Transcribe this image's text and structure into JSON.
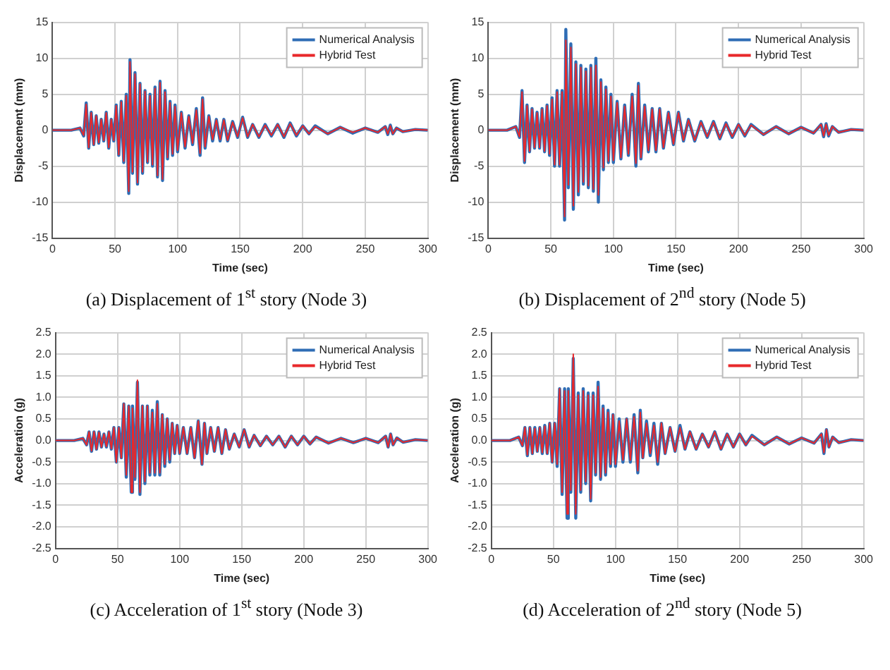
{
  "chart_data": [
    {
      "type": "line",
      "title": "(a) Displacement of 1$^{st}$ story (Node 3)",
      "xlabel": "Time (sec)",
      "ylabel": "Displacement (mm)",
      "xlim": [
        0,
        300
      ],
      "xticks": [
        0,
        50,
        100,
        150,
        200,
        250,
        300
      ],
      "ylim": [
        -15,
        15
      ],
      "yticks": [
        -15,
        -10,
        -5,
        0,
        5,
        10,
        15
      ],
      "grid": true,
      "legend": "top right",
      "marker": "none",
      "x": [
        0,
        15,
        22,
        25,
        27,
        29,
        31,
        33,
        35,
        37,
        39,
        41,
        43,
        45,
        47,
        49,
        51,
        53,
        55,
        57,
        59,
        61,
        62,
        64,
        66,
        68,
        70,
        72,
        74,
        76,
        78,
        80,
        82,
        84,
        86,
        88,
        90,
        92,
        94,
        96,
        98,
        100,
        103,
        106,
        109,
        112,
        115,
        118,
        120,
        122,
        125,
        128,
        131,
        134,
        137,
        140,
        144,
        148,
        152,
        156,
        160,
        165,
        170,
        175,
        180,
        185,
        190,
        195,
        200,
        205,
        210,
        220,
        230,
        240,
        250,
        260,
        266,
        268,
        270,
        272,
        275,
        280,
        290,
        300
      ],
      "series": [
        {
          "name": "Numerical Analysis",
          "color": "#2f6db5",
          "values": [
            0,
            0,
            0.3,
            -0.8,
            3.8,
            -2.5,
            2.5,
            -2,
            2,
            -1.8,
            1.5,
            -1.5,
            2.5,
            -2.5,
            1.5,
            -1.5,
            3.5,
            -3.5,
            4,
            -4.5,
            5,
            -8.8,
            9.8,
            -6,
            8,
            -7.5,
            6.5,
            -6,
            5.5,
            -4.5,
            5,
            -5,
            6,
            -6.5,
            6.8,
            -7,
            5.5,
            -4,
            4,
            -3.5,
            3.5,
            -3,
            2.5,
            -2.5,
            2,
            -2,
            3,
            -3.5,
            4.5,
            -2.5,
            2,
            -1.5,
            1.5,
            -1.5,
            1.5,
            -1.5,
            1.2,
            -1,
            1.8,
            -1,
            0.8,
            -1,
            0.8,
            -0.8,
            0.8,
            -1,
            1,
            -0.8,
            0.6,
            -0.5,
            0.6,
            -0.5,
            0.4,
            -0.4,
            0.3,
            -0.3,
            0.5,
            -0.6,
            0.7,
            -0.5,
            0.3,
            -0.2,
            0.1,
            0
          ]
        },
        {
          "name": "Hybrid Test",
          "color": "#e8282b",
          "values": [
            0,
            0,
            0.3,
            -0.7,
            3.6,
            -2.4,
            2.4,
            -2,
            2,
            -1.7,
            1.5,
            -1.4,
            2.4,
            -2.4,
            1.5,
            -1.4,
            3.4,
            -3.4,
            3.9,
            -4.3,
            4.8,
            -8.5,
            9.5,
            -5.8,
            7.8,
            -7.3,
            6.4,
            -5.8,
            5.4,
            -4.4,
            4.8,
            -4.8,
            5.8,
            -6.3,
            6.6,
            -6.8,
            5.3,
            -3.8,
            3.8,
            -3.3,
            3.3,
            -2.8,
            2.4,
            -2.3,
            1.9,
            -1.8,
            2.8,
            -3.2,
            4.3,
            -2.3,
            1.9,
            -1.3,
            1.4,
            -1.3,
            1.4,
            -1.4,
            1.1,
            -0.9,
            1.7,
            -0.9,
            0.8,
            -0.9,
            0.7,
            -0.7,
            0.8,
            -0.9,
            0.9,
            -0.7,
            0.6,
            -0.5,
            0.5,
            -0.5,
            0.4,
            -0.3,
            0.3,
            -0.3,
            0.5,
            -0.5,
            0.6,
            -0.5,
            0.3,
            -0.2,
            0.1,
            0
          ]
        }
      ]
    },
    {
      "type": "line",
      "title": "(b) Displacement of 2$^{nd}$ story (Node 5)",
      "xlabel": "Time (sec)",
      "ylabel": "Displacement (mm)",
      "xlim": [
        0,
        300
      ],
      "xticks": [
        0,
        50,
        100,
        150,
        200,
        250,
        300
      ],
      "ylim": [
        -15,
        15
      ],
      "yticks": [
        -15,
        -10,
        -5,
        0,
        5,
        10,
        15
      ],
      "grid": true,
      "legend": "top right",
      "marker": "none",
      "x": [
        0,
        15,
        22,
        25,
        27,
        29,
        31,
        33,
        35,
        37,
        39,
        41,
        43,
        45,
        47,
        49,
        51,
        53,
        55,
        57,
        59,
        61,
        62,
        64,
        66,
        68,
        70,
        72,
        74,
        76,
        78,
        80,
        82,
        84,
        86,
        88,
        90,
        92,
        94,
        96,
        98,
        100,
        103,
        106,
        109,
        112,
        115,
        118,
        120,
        122,
        125,
        128,
        131,
        134,
        137,
        140,
        144,
        148,
        152,
        156,
        160,
        165,
        170,
        175,
        180,
        185,
        190,
        195,
        200,
        205,
        210,
        220,
        230,
        240,
        250,
        260,
        266,
        268,
        270,
        272,
        275,
        280,
        290,
        300
      ],
      "series": [
        {
          "name": "Numerical Analysis",
          "color": "#2f6db5",
          "values": [
            0,
            0,
            0.5,
            -1,
            5.5,
            -4.5,
            3.5,
            -3,
            3,
            -2.5,
            2.5,
            -2.5,
            3,
            -3,
            3.5,
            -3.5,
            4.5,
            -5,
            5.5,
            -5,
            5.5,
            -12.5,
            14,
            -8,
            12,
            -11,
            9.5,
            -9,
            9,
            -7.5,
            8.5,
            -8,
            9,
            -8.5,
            10,
            -10,
            7,
            -5.5,
            6,
            -4.5,
            5,
            -4.5,
            4,
            -4,
            3.5,
            -3.5,
            5,
            -5,
            6.5,
            -4,
            3.5,
            -3,
            3,
            -3,
            3,
            -2.5,
            2.5,
            -2,
            2.5,
            -1.5,
            1.5,
            -1.5,
            1.2,
            -1,
            1.2,
            -1.2,
            1,
            -1,
            0.8,
            -0.8,
            0.8,
            -0.6,
            0.5,
            -0.5,
            0.4,
            -0.4,
            0.8,
            -0.9,
            0.9,
            -0.8,
            0.5,
            -0.3,
            0.1,
            0
          ]
        },
        {
          "name": "Hybrid Test",
          "color": "#e8282b",
          "values": [
            0,
            0,
            0.5,
            -0.9,
            5.3,
            -4.3,
            3.4,
            -2.9,
            2.9,
            -2.4,
            2.4,
            -2.4,
            2.9,
            -2.9,
            3.4,
            -3.3,
            4.3,
            -4.8,
            5.3,
            -4.8,
            5.3,
            -12,
            12.5,
            -7.6,
            11.5,
            -10.5,
            9.2,
            -8.6,
            8.7,
            -7.2,
            8.2,
            -7.7,
            8.7,
            -8.2,
            9,
            -9,
            6.7,
            -5.2,
            5.7,
            -4.3,
            4.7,
            -4.2,
            3.8,
            -3.8,
            3.3,
            -3.3,
            4.7,
            -4.6,
            6.2,
            -3.8,
            3.3,
            -2.8,
            2.9,
            -2.8,
            2.9,
            -2.4,
            2.4,
            -1.9,
            2.4,
            -1.4,
            1.4,
            -1.4,
            1.1,
            -0.9,
            1.1,
            -1.1,
            0.9,
            -0.9,
            0.8,
            -0.7,
            0.7,
            -0.6,
            0.5,
            -0.5,
            0.4,
            -0.4,
            0.8,
            -0.8,
            0.8,
            -0.7,
            0.5,
            -0.3,
            0.1,
            0
          ]
        }
      ]
    },
    {
      "type": "line",
      "title": "(c) Acceleration of 1$^{st}$ story (Node 3)",
      "xlabel": "Time (sec)",
      "ylabel": "Acceleration (g)",
      "xlim": [
        0,
        300
      ],
      "xticks": [
        0,
        50,
        100,
        150,
        200,
        250,
        300
      ],
      "ylim": [
        -2.5,
        2.5
      ],
      "yticks": [
        -2.5,
        {
          "value": -2,
          "label": "-2.0"
        },
        -1.5,
        {
          "value": -1,
          "label": "-1.0"
        },
        -0.5,
        {
          "value": 0,
          "label": "0.0"
        },
        0.5,
        {
          "value": 1,
          "label": "1.0"
        },
        1.5,
        {
          "value": 2,
          "label": "2.0"
        },
        2.5
      ],
      "grid": true,
      "legend": "top right",
      "marker": "none",
      "x": [
        0,
        15,
        22,
        25,
        27,
        29,
        31,
        33,
        35,
        37,
        39,
        41,
        43,
        45,
        47,
        49,
        51,
        53,
        55,
        57,
        59,
        61,
        62,
        64,
        66,
        68,
        70,
        72,
        74,
        76,
        78,
        80,
        82,
        84,
        86,
        88,
        90,
        92,
        94,
        96,
        98,
        100,
        103,
        106,
        109,
        112,
        115,
        118,
        120,
        122,
        125,
        128,
        131,
        134,
        137,
        140,
        144,
        148,
        152,
        156,
        160,
        165,
        170,
        175,
        180,
        185,
        190,
        195,
        200,
        205,
        210,
        220,
        230,
        240,
        250,
        260,
        266,
        268,
        270,
        272,
        275,
        280,
        290,
        300
      ],
      "series": [
        {
          "name": "Numerical Analysis",
          "color": "#2f6db5",
          "values": [
            0,
            0,
            0.05,
            -0.1,
            0.2,
            -0.25,
            0.2,
            -0.2,
            0.2,
            -0.15,
            0.15,
            -0.15,
            0.2,
            -0.2,
            0.3,
            -0.5,
            0.3,
            -0.4,
            0.85,
            -0.85,
            0.8,
            -1.2,
            0.8,
            -0.9,
            1.35,
            -1.25,
            0.8,
            -1,
            0.8,
            -0.8,
            0.7,
            -0.8,
            0.9,
            -0.8,
            0.6,
            -0.6,
            0.5,
            -0.5,
            0.4,
            -0.3,
            0.35,
            -0.3,
            0.3,
            -0.3,
            0.3,
            -0.4,
            0.45,
            -0.55,
            0.4,
            -0.3,
            0.3,
            -0.25,
            0.3,
            -0.3,
            0.25,
            -0.2,
            0.15,
            -0.15,
            0.25,
            -0.15,
            0.12,
            -0.12,
            0.1,
            -0.1,
            0.1,
            -0.15,
            0.1,
            -0.1,
            0.1,
            -0.08,
            0.08,
            -0.06,
            0.05,
            -0.05,
            0.05,
            -0.05,
            0.1,
            -0.15,
            0.15,
            -0.1,
            0.06,
            -0.04,
            0.02,
            0
          ]
        },
        {
          "name": "Hybrid Test",
          "color": "#e8282b",
          "values": [
            0,
            0,
            0.05,
            -0.1,
            0.2,
            -0.24,
            0.2,
            -0.2,
            0.19,
            -0.15,
            0.15,
            -0.14,
            0.2,
            -0.19,
            0.3,
            -0.5,
            0.3,
            -0.4,
            0.85,
            -0.8,
            0.8,
            -1.2,
            0.75,
            -0.85,
            1.4,
            -1.2,
            0.8,
            -0.95,
            0.8,
            -0.75,
            0.65,
            -0.75,
            0.85,
            -0.75,
            0.6,
            -0.55,
            0.5,
            -0.45,
            0.4,
            -0.3,
            0.35,
            -0.3,
            0.3,
            -0.3,
            0.3,
            -0.4,
            0.45,
            -0.55,
            0.4,
            -0.3,
            0.3,
            -0.25,
            0.3,
            -0.3,
            0.25,
            -0.2,
            0.15,
            -0.15,
            0.25,
            -0.15,
            0.12,
            -0.12,
            0.1,
            -0.1,
            0.1,
            -0.15,
            0.1,
            -0.1,
            0.1,
            -0.08,
            0.08,
            -0.06,
            0.05,
            -0.05,
            0.05,
            -0.05,
            0.1,
            -0.15,
            0.15,
            -0.1,
            0.06,
            -0.04,
            0.02,
            0
          ]
        }
      ]
    },
    {
      "type": "line",
      "title": "(d) Acceleration of 2$^{nd}$ story (Node 5)",
      "xlabel": "Time (sec)",
      "ylabel": "Acceleration (g)",
      "xlim": [
        0,
        300
      ],
      "xticks": [
        0,
        50,
        100,
        150,
        200,
        250,
        300
      ],
      "ylim": [
        -2.5,
        2.5
      ],
      "yticks": [
        -2.5,
        {
          "value": -2,
          "label": "-2.0"
        },
        -1.5,
        {
          "value": -1,
          "label": "-1.0"
        },
        -0.5,
        {
          "value": 0,
          "label": "0.0"
        },
        0.5,
        {
          "value": 1,
          "label": "1.0"
        },
        1.5,
        {
          "value": 2,
          "label": "2.0"
        },
        2.5
      ],
      "grid": true,
      "legend": "top right",
      "marker": "none",
      "x": [
        0,
        15,
        22,
        25,
        27,
        29,
        31,
        33,
        35,
        37,
        39,
        41,
        43,
        45,
        47,
        49,
        51,
        53,
        55,
        57,
        59,
        61,
        62,
        64,
        66,
        68,
        70,
        72,
        74,
        76,
        78,
        80,
        82,
        84,
        86,
        88,
        90,
        92,
        94,
        96,
        98,
        100,
        103,
        106,
        109,
        112,
        115,
        118,
        120,
        122,
        125,
        128,
        131,
        134,
        137,
        140,
        144,
        148,
        152,
        156,
        160,
        165,
        170,
        175,
        180,
        185,
        190,
        195,
        200,
        205,
        210,
        220,
        230,
        240,
        250,
        260,
        266,
        268,
        270,
        272,
        275,
        280,
        290,
        300
      ],
      "series": [
        {
          "name": "Numerical Analysis",
          "color": "#2f6db5",
          "values": [
            0,
            0,
            0.08,
            -0.12,
            0.3,
            -0.35,
            0.3,
            -0.3,
            0.3,
            -0.25,
            0.3,
            -0.3,
            0.35,
            -0.3,
            0.4,
            -0.5,
            0.4,
            -0.6,
            1.2,
            -1.25,
            1.2,
            -1.8,
            1.2,
            -1.2,
            1.9,
            -1.8,
            1.1,
            -1.2,
            1.2,
            -1,
            1.1,
            -1.4,
            1.1,
            -0.8,
            1.35,
            -0.9,
            0.8,
            -0.8,
            0.7,
            -0.6,
            0.6,
            -0.6,
            0.5,
            -0.5,
            0.5,
            -0.5,
            0.6,
            -0.75,
            0.7,
            -0.4,
            0.45,
            -0.35,
            0.4,
            -0.55,
            0.4,
            -0.3,
            0.3,
            -0.25,
            0.35,
            -0.2,
            0.2,
            -0.2,
            0.15,
            -0.15,
            0.2,
            -0.2,
            0.15,
            -0.15,
            0.15,
            -0.1,
            0.12,
            -0.1,
            0.08,
            -0.08,
            0.06,
            -0.06,
            0.15,
            -0.3,
            0.25,
            -0.15,
            0.08,
            -0.05,
            0.02,
            0
          ]
        },
        {
          "name": "Hybrid Test",
          "color": "#e8282b",
          "values": [
            0,
            0,
            0.08,
            -0.12,
            0.3,
            -0.33,
            0.3,
            -0.3,
            0.28,
            -0.25,
            0.3,
            -0.28,
            0.33,
            -0.3,
            0.4,
            -0.5,
            0.4,
            -0.55,
            1.2,
            -1.2,
            1.15,
            -1.7,
            1.15,
            -1.15,
            2,
            -1.7,
            1.05,
            -1.15,
            1.15,
            -0.95,
            1.05,
            -1.35,
            1.05,
            -0.75,
            1.25,
            -0.85,
            0.75,
            -0.75,
            0.65,
            -0.55,
            0.6,
            -0.55,
            0.45,
            -0.45,
            0.5,
            -0.45,
            0.55,
            -0.7,
            0.65,
            -0.4,
            0.4,
            -0.3,
            0.35,
            -0.5,
            0.4,
            -0.3,
            0.3,
            -0.25,
            0.3,
            -0.2,
            0.2,
            -0.2,
            0.15,
            -0.15,
            0.2,
            -0.2,
            0.15,
            -0.15,
            0.15,
            -0.1,
            0.1,
            -0.1,
            0.08,
            -0.08,
            0.06,
            -0.06,
            0.15,
            -0.28,
            0.25,
            -0.15,
            0.08,
            -0.05,
            0.02,
            0
          ]
        }
      ]
    }
  ]
}
